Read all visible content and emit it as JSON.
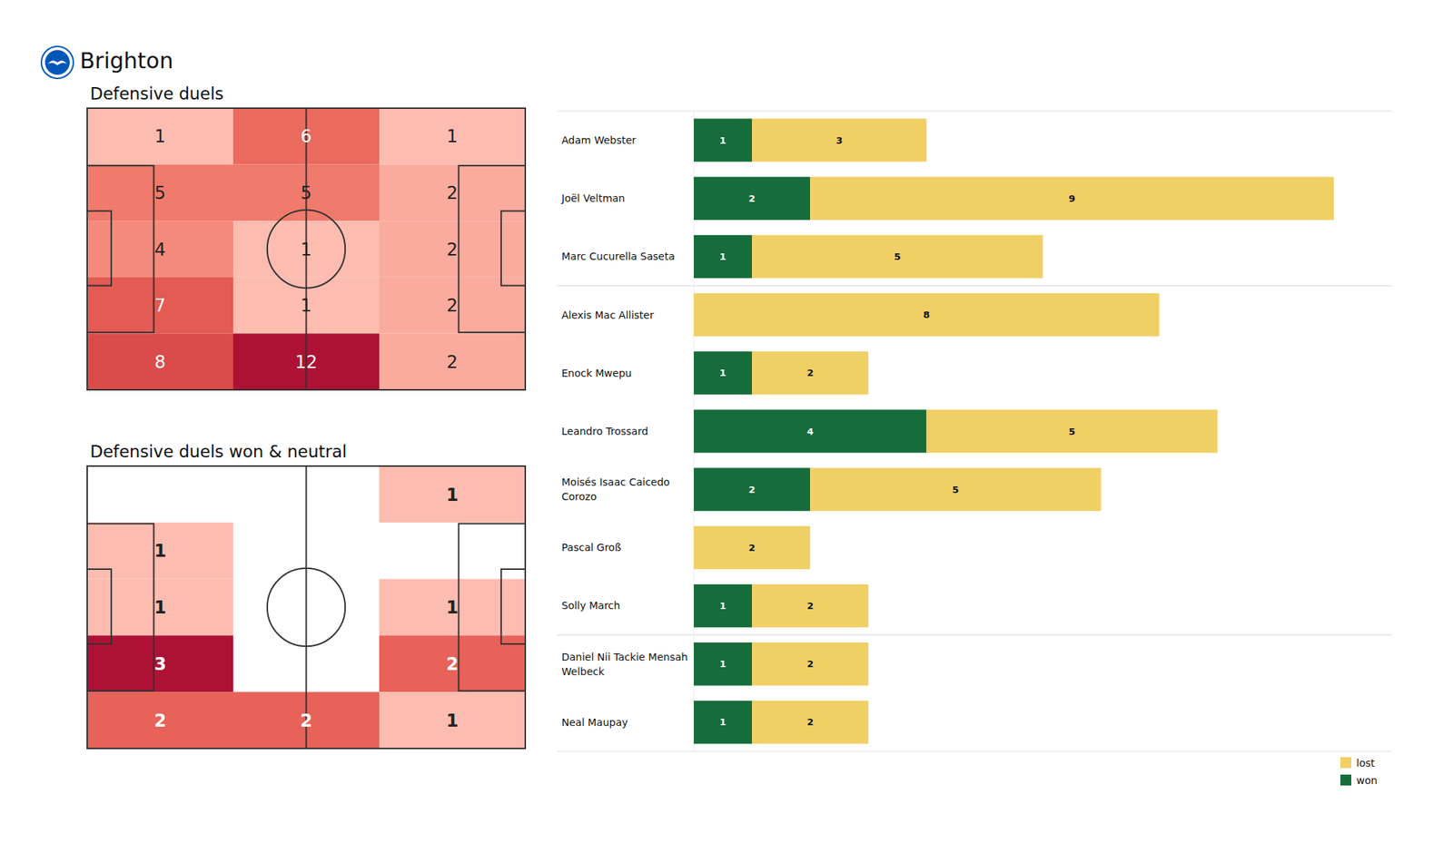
{
  "title": "Brighton",
  "chart_data": [
    {
      "type": "heatmap",
      "title": "Defensive duels",
      "cells": [
        [
          1,
          6,
          1
        ],
        [
          5,
          5,
          2
        ],
        [
          4,
          1,
          2
        ],
        [
          7,
          1,
          2
        ],
        [
          8,
          12,
          2
        ]
      ]
    },
    {
      "type": "heatmap",
      "title": "Defensive duels won & neutral",
      "cells": [
        [
          null,
          null,
          1
        ],
        [
          1,
          null,
          null
        ],
        [
          1,
          null,
          1
        ],
        [
          3,
          null,
          2
        ],
        [
          2,
          2,
          1
        ]
      ]
    },
    {
      "type": "bar",
      "orientation": "horizontal",
      "stacked": true,
      "data_labels": true,
      "tick_labels": "y",
      "legend": "lower right",
      "categories": [
        "Adam Webster",
        "Joël Veltman",
        "Marc Cucurella Saseta",
        "Alexis Mac Allister",
        "Enock Mwepu",
        "Leandro Trossard",
        "Moisés Isaac Caicedo Corozo",
        "Pascal Groß",
        "Solly March",
        "Daniel Nii Tackie Mensah Welbeck",
        "Neal Maupay"
      ],
      "series": [
        {
          "name": "won",
          "color": "#166d3b",
          "values": [
            1,
            2,
            1,
            null,
            1,
            4,
            2,
            null,
            1,
            1,
            1
          ]
        },
        {
          "name": "lost",
          "color": "#f0cf65",
          "values": [
            3,
            9,
            5,
            8,
            2,
            5,
            5,
            2,
            2,
            2,
            2
          ]
        }
      ],
      "xlim": [
        0,
        12
      ]
    }
  ]
}
